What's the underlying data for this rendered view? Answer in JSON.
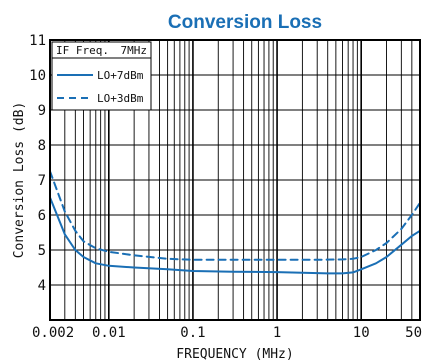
{
  "chart_data": {
    "type": "line",
    "title": "Conversion Loss",
    "xlabel": "FREQUENCY (MHz)",
    "ylabel": "Conversion Loss (dB)",
    "xscale": "log",
    "xlim": [
      0.002,
      50
    ],
    "ylim": [
      3,
      11
    ],
    "x_tick_labels": [
      "0.002",
      "0.01",
      "0.1",
      "1",
      "10",
      "50"
    ],
    "x_tick_values": [
      0.002,
      0.01,
      0.1,
      1,
      10,
      50
    ],
    "y_tick_labels": [
      "4",
      "5",
      "6",
      "7",
      "8",
      "9",
      "10",
      "11"
    ],
    "y_tick_values": [
      4,
      5,
      6,
      7,
      8,
      9,
      10,
      11
    ],
    "grid": true,
    "legend_position": "top-left",
    "legend_header": [
      "IF Freq.",
      "7MHz"
    ],
    "title_color": "#1a6fb5",
    "series_color": "#1a6fb5",
    "series": [
      {
        "name": "LO+7dBm",
        "style": "solid",
        "points": [
          [
            0.002,
            6.5
          ],
          [
            0.003,
            5.45
          ],
          [
            0.004,
            5.0
          ],
          [
            0.005,
            4.8
          ],
          [
            0.007,
            4.62
          ],
          [
            0.01,
            4.55
          ],
          [
            0.02,
            4.5
          ],
          [
            0.05,
            4.45
          ],
          [
            0.1,
            4.4
          ],
          [
            0.3,
            4.38
          ],
          [
            1,
            4.37
          ],
          [
            2,
            4.35
          ],
          [
            4,
            4.33
          ],
          [
            6,
            4.33
          ],
          [
            8,
            4.36
          ],
          [
            10,
            4.45
          ],
          [
            15,
            4.62
          ],
          [
            20,
            4.8
          ],
          [
            30,
            5.15
          ],
          [
            40,
            5.4
          ],
          [
            50,
            5.55
          ]
        ]
      },
      {
        "name": "LO+3dBm",
        "style": "dashed",
        "points": [
          [
            0.002,
            7.25
          ],
          [
            0.003,
            6.1
          ],
          [
            0.004,
            5.55
          ],
          [
            0.005,
            5.25
          ],
          [
            0.007,
            5.05
          ],
          [
            0.01,
            4.95
          ],
          [
            0.02,
            4.85
          ],
          [
            0.05,
            4.75
          ],
          [
            0.1,
            4.72
          ],
          [
            0.3,
            4.72
          ],
          [
            1,
            4.72
          ],
          [
            3,
            4.72
          ],
          [
            6,
            4.73
          ],
          [
            8,
            4.75
          ],
          [
            10,
            4.8
          ],
          [
            15,
            5.0
          ],
          [
            20,
            5.2
          ],
          [
            30,
            5.6
          ],
          [
            40,
            6.0
          ],
          [
            50,
            6.35
          ]
        ]
      }
    ]
  }
}
